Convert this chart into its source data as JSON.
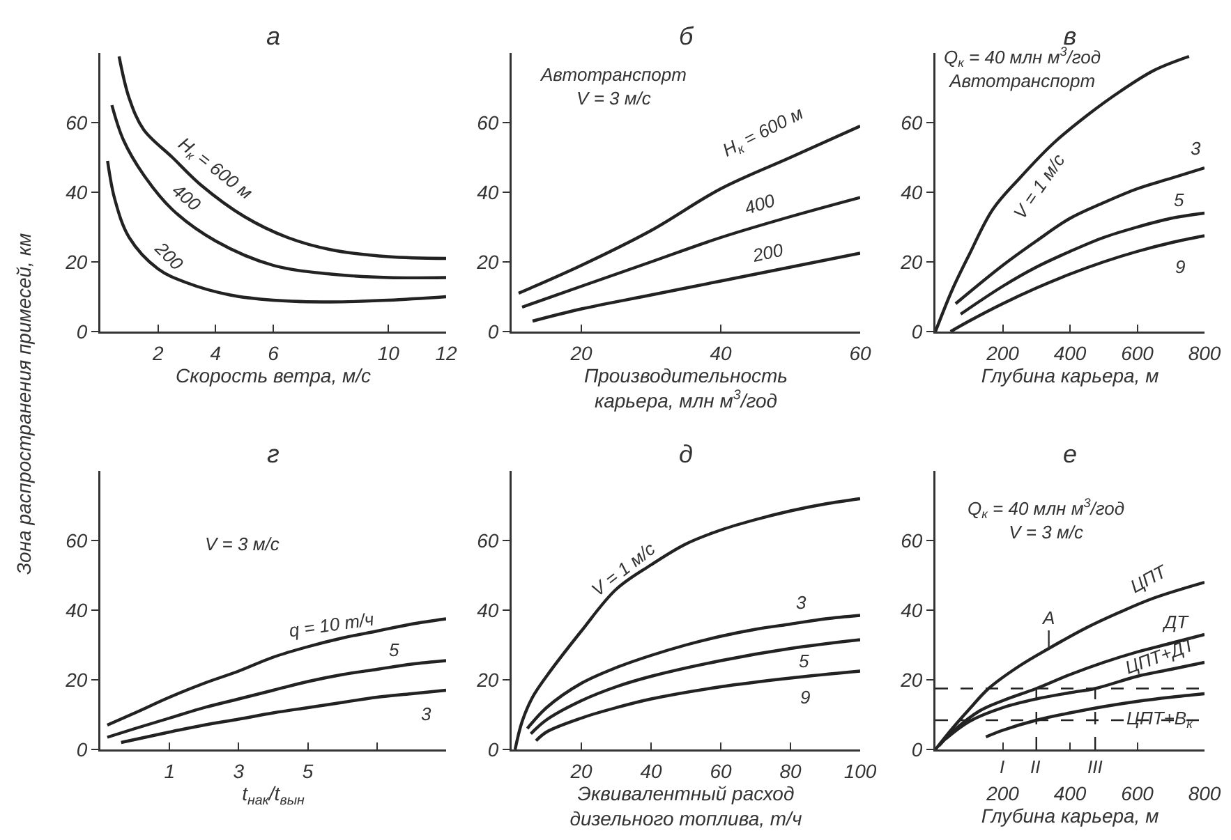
{
  "chart_data": [
    {
      "type": "line",
      "title": "а",
      "xlabel": "Скорость ветра, м/с",
      "ylabel": "Зона распространения примесей, км",
      "xlim": [
        0,
        12
      ],
      "xticks": [
        2,
        4,
        6,
        10,
        12
      ],
      "ylim": [
        0,
        80
      ],
      "yticks": [
        0,
        20,
        40,
        60
      ],
      "series": [
        {
          "name": "H$_{к}$ = 600 м",
          "color": "#222222",
          "x": [
            0.65,
            1,
            1.5,
            2.5,
            3.5,
            5,
            6.5,
            8,
            10,
            12
          ],
          "values": [
            79,
            67,
            58,
            50,
            42,
            33,
            27,
            23.5,
            21.5,
            21
          ]
        },
        {
          "name": "400",
          "color": "#222222",
          "x": [
            0.4,
            0.8,
            1.5,
            2.5,
            4,
            6,
            8,
            10,
            12
          ],
          "values": [
            65,
            55,
            45,
            35,
            26,
            19,
            16.5,
            15.5,
            15.5
          ]
        },
        {
          "name": "200",
          "color": "#222222",
          "x": [
            0.25,
            0.5,
            1,
            2,
            3,
            4.5,
            6,
            8,
            10,
            12
          ],
          "values": [
            49,
            38,
            27,
            18,
            14,
            10.5,
            9,
            8.5,
            9,
            10
          ]
        }
      ]
    },
    {
      "type": "line",
      "title": "б",
      "xlabel": "Производительность\nкарьера, млн м$^{3}$/год",
      "xlim": [
        10,
        60
      ],
      "xticks": [
        20,
        40,
        60
      ],
      "ylim": [
        0,
        80
      ],
      "yticks": [
        0,
        20,
        40,
        60
      ],
      "annotations": [
        "Автотранспорт\nV = 3 м/с"
      ],
      "series": [
        {
          "name": "H$_{к}$ = 600 м",
          "color": "#222222",
          "x": [
            11,
            20,
            30,
            40,
            50,
            60
          ],
          "values": [
            11,
            19,
            29,
            41,
            50,
            59
          ]
        },
        {
          "name": "400",
          "color": "#222222",
          "x": [
            11.5,
            20,
            30,
            40,
            50,
            60
          ],
          "values": [
            7,
            13,
            20,
            27,
            33,
            38.5
          ]
        },
        {
          "name": "200",
          "color": "#222222",
          "x": [
            13,
            20,
            30,
            40,
            50,
            60
          ],
          "values": [
            3,
            6.5,
            10.5,
            14.5,
            18.5,
            22.5
          ]
        }
      ]
    },
    {
      "type": "line",
      "title": "в",
      "xlabel": "Глубина карьера, м",
      "xlim": [
        0,
        800
      ],
      "xticks": [
        200,
        400,
        600,
        800
      ],
      "ylim": [
        0,
        80
      ],
      "yticks": [
        0,
        20,
        40,
        60
      ],
      "annotations": [
        "Q$_{к}$ = 40 млн м$^{3}$/год\nАвтотранспорт"
      ],
      "series": [
        {
          "name": "V = 1 м/с",
          "color": "#222222",
          "x": [
            0,
            50,
            100,
            170,
            250,
            350,
            450,
            550,
            650,
            754
          ],
          "values": [
            0,
            12,
            22,
            35,
            44,
            54,
            62,
            69,
            75,
            79
          ]
        },
        {
          "name": "3",
          "color": "#222222",
          "x": [
            60,
            200,
            300,
            400,
            500,
            600,
            700,
            800
          ],
          "values": [
            8,
            19,
            26,
            32.5,
            37,
            41,
            44,
            47
          ]
        },
        {
          "name": "5",
          "color": "#222222",
          "x": [
            75,
            200,
            300,
            400,
            500,
            600,
            700,
            800
          ],
          "values": [
            5,
            13,
            18.5,
            23,
            27,
            30,
            32.5,
            34
          ]
        },
        {
          "name": "9",
          "color": "#222222",
          "x": [
            45,
            100,
            200,
            300,
            400,
            500,
            600,
            700,
            800
          ],
          "values": [
            0,
            3,
            8,
            12.5,
            16.5,
            20,
            23,
            25.5,
            27.5
          ]
        }
      ]
    },
    {
      "type": "line",
      "title": "г",
      "xlabel": "t$_{нак}$/t$_{вын}$",
      "xlim": [
        -1,
        9
      ],
      "xticks": [
        1,
        3,
        5,
        {
          "value": 7,
          "label": null
        }
      ],
      "ylim": [
        0,
        80
      ],
      "yticks": [
        0,
        20,
        40,
        60
      ],
      "annotations": [
        "V = 3 м/с"
      ],
      "series": [
        {
          "name": "q = 10 т/ч",
          "color": "#222222",
          "x": [
            -0.8,
            0,
            1,
            2,
            3,
            4,
            5,
            6,
            7,
            8,
            9
          ],
          "values": [
            7,
            10.5,
            15,
            19,
            22.5,
            26.5,
            29.5,
            32,
            34,
            36,
            37.5
          ]
        },
        {
          "name": "5",
          "color": "#222222",
          "x": [
            -0.8,
            0,
            1,
            2,
            3,
            4,
            5,
            6,
            7,
            8,
            9
          ],
          "values": [
            3.5,
            6,
            9,
            12,
            14.5,
            17,
            19.5,
            21.5,
            23,
            24.5,
            25.5
          ]
        },
        {
          "name": "3",
          "color": "#222222",
          "x": [
            -0.4,
            1,
            2,
            3,
            4,
            5,
            6,
            7,
            8,
            9
          ],
          "values": [
            2,
            5,
            7,
            8.7,
            10.5,
            12,
            13.5,
            15,
            16,
            17
          ]
        }
      ]
    },
    {
      "type": "line",
      "title": "д",
      "xlabel": "Эквивалентный расход\nдизельного топлива, т/ч",
      "xlim": [
        0,
        100
      ],
      "xticks": [
        20,
        40,
        60,
        80,
        100
      ],
      "ylim": [
        0,
        80
      ],
      "yticks": [
        0,
        20,
        40,
        60
      ],
      "series": [
        {
          "name": "V = 1 м/с",
          "color": "#222222",
          "x": [
            1,
            3,
            6,
            10,
            20,
            30,
            40,
            50,
            60,
            70,
            80,
            90,
            100
          ],
          "values": [
            0,
            8,
            15,
            21,
            34,
            46,
            53,
            59,
            63,
            66,
            68.5,
            70.5,
            72
          ]
        },
        {
          "name": "3",
          "color": "#222222",
          "x": [
            4.5,
            10,
            20,
            30,
            40,
            50,
            60,
            70,
            80,
            90,
            100
          ],
          "values": [
            6,
            12,
            19,
            23.5,
            27,
            30,
            32.5,
            34.5,
            36,
            37.5,
            38.5
          ]
        },
        {
          "name": "5",
          "color": "#222222",
          "x": [
            5.5,
            10,
            20,
            30,
            40,
            60,
            80,
            100
          ],
          "values": [
            4.5,
            8.5,
            14,
            18,
            21,
            25.5,
            29,
            31.5
          ]
        },
        {
          "name": "9",
          "color": "#222222",
          "x": [
            7,
            10,
            20,
            30,
            40,
            60,
            80,
            100
          ],
          "values": [
            2.5,
            5,
            9,
            12,
            14.5,
            18,
            20.5,
            22.5
          ]
        }
      ]
    },
    {
      "type": "line",
      "title": "е",
      "xlabel": "Глубина карьера, м",
      "xlim": [
        0,
        800
      ],
      "xticks": [
        200,
        400,
        600,
        800
      ],
      "ylim": [
        0,
        80
      ],
      "yticks": [
        0,
        20,
        40,
        60
      ],
      "annotations": [
        "Q$_{к}$ = 40 млн м$^{3}$/год\nV = 3 м/с",
        {
          "text": "A",
          "x": 337,
          "y": 29
        },
        "I"
      ],
      "ref_lines": [
        {
          "axis": "y",
          "value": 17.5,
          "line_style": "dashed",
          "color": "#222222"
        },
        {
          "axis": "y",
          "value": 8.4,
          "line_style": "dashed",
          "color": "#222222"
        },
        {
          "axis": "x",
          "value": 300,
          "label": "II",
          "line_style": "dashed",
          "color": "#222222"
        },
        {
          "axis": "x",
          "value": 475,
          "label": "III",
          "line_style": "dashed",
          "color": "#222222"
        }
      ],
      "series": [
        {
          "name": "ЦПТ",
          "color": "#222222",
          "x": [
            0,
            50,
            100,
            158,
            250,
            337,
            450,
            550,
            650,
            800
          ],
          "values": [
            0,
            6,
            11.5,
            17.5,
            24,
            29,
            35,
            39.5,
            43.5,
            48
          ]
        },
        {
          "name": "ДТ",
          "color": "#222222",
          "x": [
            10,
            50,
            130,
            200,
            300,
            400,
            500,
            600,
            700,
            800
          ],
          "values": [
            1,
            5,
            11,
            14,
            17.5,
            21.5,
            25,
            28,
            30.5,
            33
          ]
        },
        {
          "name": "ЦПТ+ДТ",
          "color": "#222222",
          "x": [
            30,
            100,
            200,
            300,
            400,
            475,
            600,
            700,
            800
          ],
          "values": [
            3,
            8,
            12,
            14.5,
            16.3,
            17.5,
            21,
            23,
            25
          ]
        },
        {
          "name": "ЦПТ+В$_{к}$",
          "color": "#222222",
          "x": [
            150,
            200,
            300,
            400,
            500,
            600,
            700,
            800
          ],
          "values": [
            3.6,
            5.5,
            8.4,
            10.5,
            12.3,
            13.8,
            15,
            16
          ]
        }
      ]
    }
  ]
}
